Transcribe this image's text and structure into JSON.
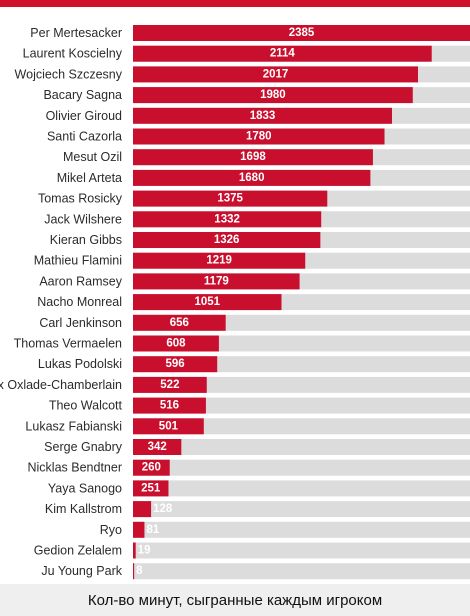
{
  "chart_data": {
    "type": "bar",
    "orientation": "horizontal",
    "categories": [
      "Per Mertesacker",
      "Laurent Koscielny",
      "Wojciech Szczesny",
      "Bacary Sagna",
      "Olivier Giroud",
      "Santi Cazorla",
      "Mesut Ozil",
      "Mikel Arteta",
      "Tomas Rosicky",
      "Jack Wilshere",
      "Kieran Gibbs",
      "Mathieu Flamini",
      "Aaron Ramsey",
      "Nacho Monreal",
      "Carl Jenkinson",
      "Thomas Vermaelen",
      "Lukas Podolski",
      "Alex Oxlade-Chamberlain",
      "Theo Walcott",
      "Lukasz Fabianski",
      "Serge Gnabry",
      "Nicklas Bendtner",
      "Yaya Sanogo",
      "Kim Kallstrom",
      "Ryo",
      "Gedion Zelalem",
      "Ju Young Park"
    ],
    "values": [
      2385,
      2114,
      2017,
      1980,
      1833,
      1780,
      1698,
      1680,
      1375,
      1332,
      1326,
      1219,
      1179,
      1051,
      656,
      608,
      596,
      522,
      516,
      501,
      342,
      260,
      251,
      128,
      81,
      19,
      8
    ],
    "xlim": [
      0,
      2385
    ],
    "bar_color": "#c8102e",
    "track_color": "#dcdcdc",
    "grid": false,
    "legend": "none"
  },
  "caption": "Кол-во минут, сыгранные каждым игроком"
}
